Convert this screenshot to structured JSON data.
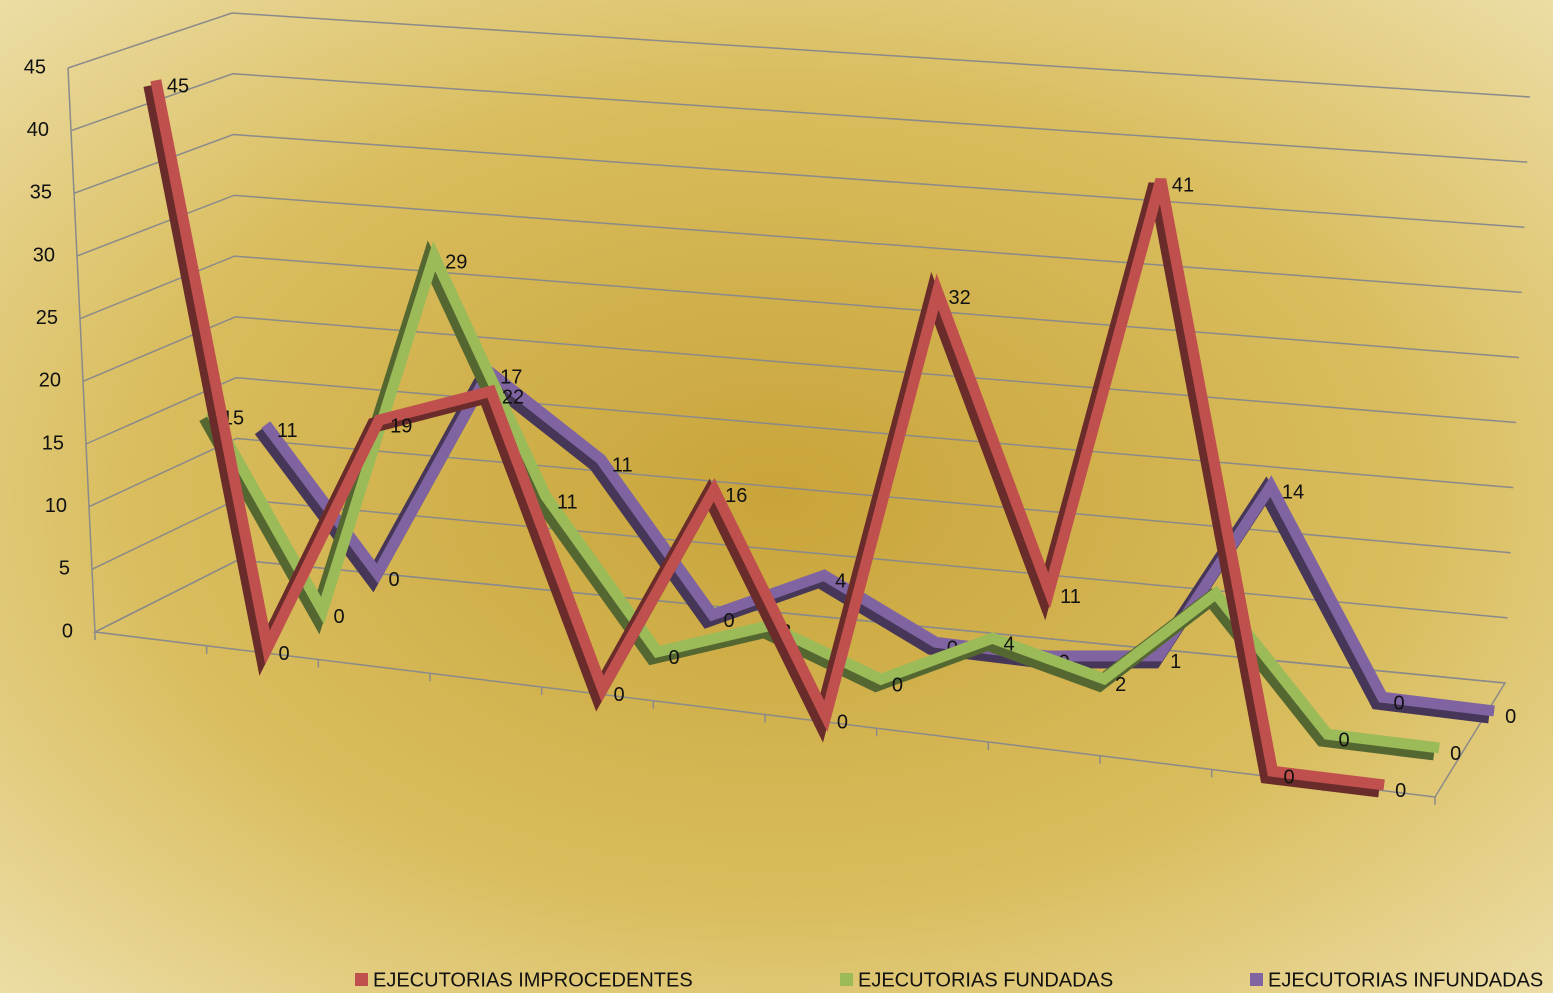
{
  "chart_data": {
    "type": "line3d",
    "categories": [
      null,
      null,
      null,
      null,
      null,
      null,
      null,
      null,
      null,
      null,
      null,
      null
    ],
    "series": [
      {
        "name": "EJECUTORIAS IMPROCEDENTES",
        "color": "#c0504d",
        "values": [
          45,
          0,
          19,
          22,
          0,
          16,
          0,
          32,
          11,
          41,
          0,
          0
        ]
      },
      {
        "name": "EJECUTORIAS FUNDADAS",
        "color": "#9bbb59",
        "values": [
          15,
          0,
          29,
          11,
          0,
          3,
          0,
          4,
          2,
          9,
          0,
          0
        ]
      },
      {
        "name": "EJECUTORIAS INFUNDADAS",
        "color": "#8064a2",
        "values": [
          11,
          0,
          17,
          11,
          0,
          4,
          0,
          0,
          1,
          14,
          0,
          0
        ]
      }
    ],
    "ylim": [
      0,
      45
    ],
    "yticks": [
      0,
      5,
      10,
      15,
      20,
      25,
      30,
      35,
      40,
      45
    ],
    "grid": true,
    "legend": "bottom"
  }
}
